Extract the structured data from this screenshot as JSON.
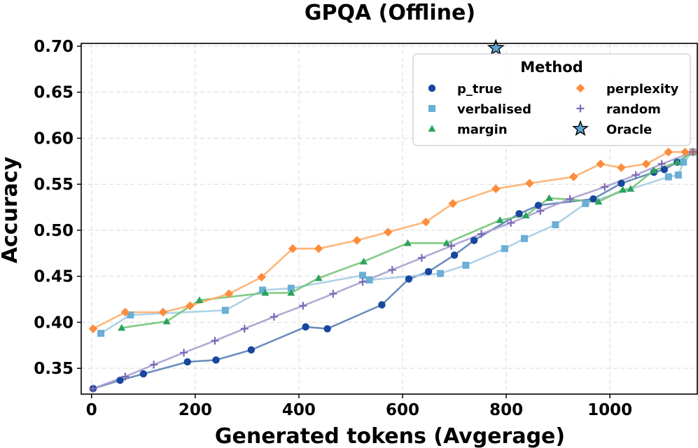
{
  "chart_data": {
    "type": "line",
    "title": "GPQA (Offline)",
    "xlabel": "Generated tokens (Avgerage)",
    "ylabel": "Accuracy",
    "xlim": [
      -20,
      1170
    ],
    "ylim": [
      0.322,
      0.703
    ],
    "xticks": [
      0,
      200,
      400,
      600,
      800,
      1000
    ],
    "xtick_labels": [
      "0",
      "200",
      "400",
      "600",
      "800",
      "1000"
    ],
    "yticks": [
      0.35,
      0.4,
      0.45,
      0.5,
      0.55,
      0.6,
      0.65,
      0.7
    ],
    "ytick_labels": [
      "0.35",
      "0.40",
      "0.45",
      "0.50",
      "0.55",
      "0.60",
      "0.65",
      "0.70"
    ],
    "grid": true,
    "legend": {
      "title": "Method",
      "placement": "top-right",
      "columns": 2
    },
    "series": [
      {
        "name": "p_true",
        "marker": "circle",
        "color": "#17479e",
        "line_color": "#5b82b6",
        "x": [
          3,
          55,
          100,
          185,
          240,
          308,
          413,
          455,
          560,
          612,
          650,
          700,
          738,
          825,
          862,
          968,
          1022,
          1085,
          1105,
          1130,
          1160
        ],
        "y": [
          0.328,
          0.337,
          0.344,
          0.357,
          0.359,
          0.37,
          0.395,
          0.393,
          0.419,
          0.447,
          0.455,
          0.473,
          0.489,
          0.518,
          0.527,
          0.534,
          0.551,
          0.563,
          0.566,
          0.574,
          0.585
        ]
      },
      {
        "name": "verbalised",
        "marker": "square",
        "color": "#6baed6",
        "line_color": "#a6cde3",
        "x": [
          18,
          75,
          258,
          330,
          385,
          523,
          536,
          673,
          722,
          797,
          835,
          895,
          953,
          1113,
          1132,
          1142,
          1160
        ],
        "y": [
          0.388,
          0.408,
          0.413,
          0.435,
          0.437,
          0.451,
          0.446,
          0.453,
          0.462,
          0.48,
          0.491,
          0.506,
          0.529,
          0.558,
          0.56,
          0.574,
          0.585
        ]
      },
      {
        "name": "margin",
        "marker": "triangle",
        "color": "#2ca25f",
        "line_color": "#74c476",
        "x": [
          58,
          145,
          208,
          335,
          385,
          438,
          525,
          610,
          685,
          788,
          838,
          883,
          978,
          1025,
          1040,
          1085,
          1130,
          1160
        ],
        "y": [
          0.394,
          0.401,
          0.424,
          0.432,
          0.432,
          0.448,
          0.466,
          0.486,
          0.486,
          0.511,
          0.516,
          0.535,
          0.531,
          0.544,
          0.545,
          0.565,
          0.574,
          0.585
        ]
      },
      {
        "name": "perplexity",
        "marker": "diamond",
        "color": "#fd8d3c",
        "line_color": "#fdae6b",
        "x": [
          3,
          65,
          138,
          190,
          265,
          328,
          388,
          438,
          512,
          572,
          645,
          697,
          780,
          845,
          930,
          982,
          1022,
          1070,
          1113,
          1145,
          1160
        ],
        "y": [
          0.393,
          0.411,
          0.411,
          0.418,
          0.431,
          0.449,
          0.48,
          0.48,
          0.489,
          0.498,
          0.509,
          0.529,
          0.545,
          0.551,
          0.558,
          0.572,
          0.568,
          0.572,
          0.585,
          0.585,
          0.585
        ]
      },
      {
        "name": "random",
        "marker": "plus",
        "color": "#7b68b5",
        "line_color": "#a99fd0",
        "x": [
          3,
          65,
          120,
          178,
          238,
          295,
          352,
          408,
          466,
          523,
          580,
          637,
          694,
          752,
          809,
          866,
          923,
          990,
          1050,
          1100,
          1160
        ],
        "y": [
          0.328,
          0.341,
          0.354,
          0.367,
          0.38,
          0.393,
          0.406,
          0.418,
          0.431,
          0.444,
          0.457,
          0.47,
          0.483,
          0.496,
          0.508,
          0.521,
          0.534,
          0.547,
          0.56,
          0.572,
          0.585
        ]
      },
      {
        "name": "Oracle",
        "marker": "star",
        "color": "#5aa5d0",
        "line_color": "none",
        "x": [
          780
        ],
        "y": [
          0.698
        ]
      }
    ]
  }
}
